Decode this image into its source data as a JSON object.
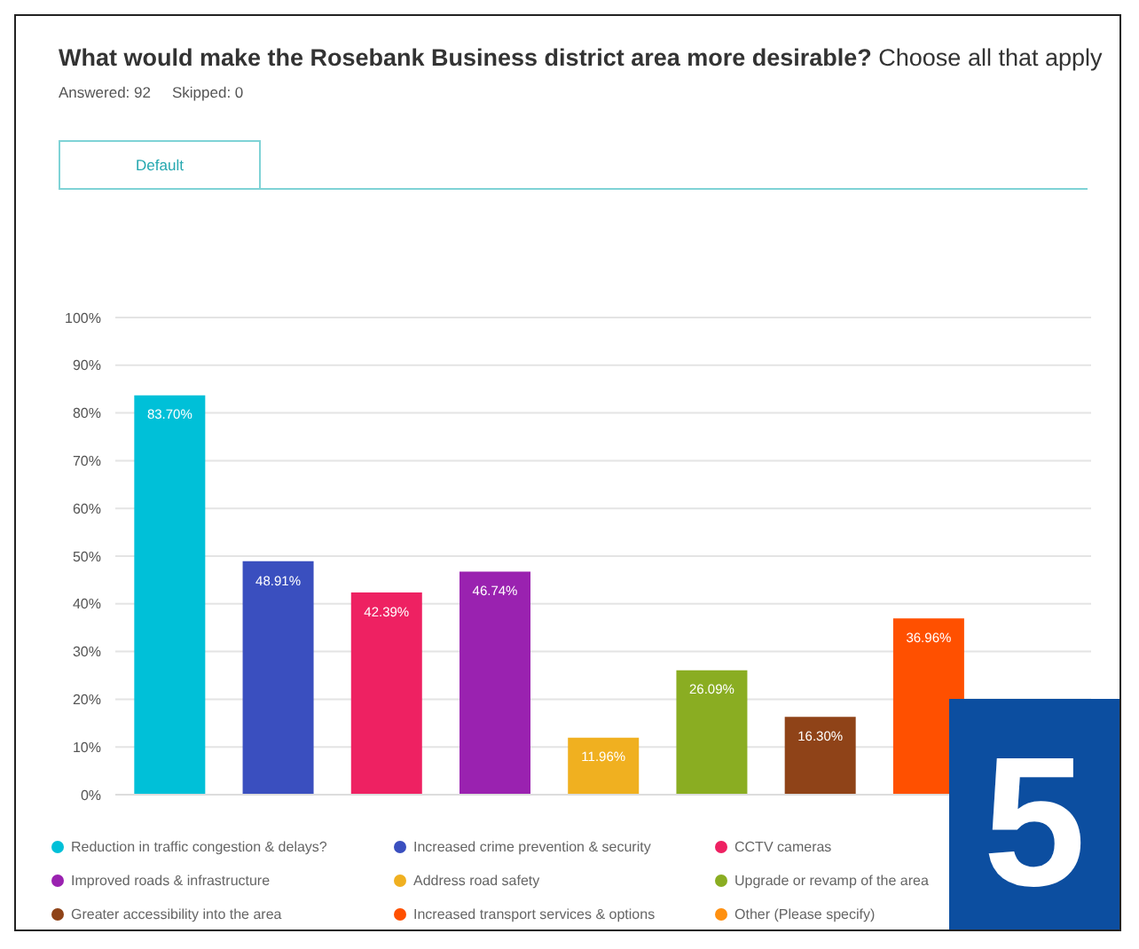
{
  "chart_data": {
    "type": "bar",
    "title": "What would make the Rosebank Business district area more desirable?",
    "subtitle": "Choose all that apply",
    "annotations": [
      "Answered: 92",
      "Skipped: 0",
      "Default",
      "5"
    ],
    "categories": [
      null,
      null,
      null,
      null,
      null,
      null,
      null,
      null,
      null
    ],
    "stacked": true,
    "series": [
      {
        "name": "Reduction in traffic congestion & delays?",
        "color": "#00c0d8",
        "values": [
          83.7,
          null,
          null,
          null,
          null,
          null,
          null,
          null,
          null
        ],
        "value_labels": [
          "83.70%",
          null,
          null,
          null,
          null,
          null,
          null,
          null,
          null
        ]
      },
      {
        "name": "Increased crime prevention & security",
        "color": "#3a4fbf",
        "values": [
          null,
          48.91,
          null,
          null,
          null,
          null,
          null,
          null,
          null
        ],
        "value_labels": [
          null,
          "48.91%",
          null,
          null,
          null,
          null,
          null,
          null,
          null
        ]
      },
      {
        "name": "CCTV cameras",
        "color": "#ee2162",
        "values": [
          null,
          null,
          42.39,
          null,
          null,
          null,
          null,
          null,
          null
        ],
        "value_labels": [
          null,
          null,
          "42.39%",
          null,
          null,
          null,
          null,
          null,
          null
        ]
      },
      {
        "name": "Improved roads & infrastructure",
        "color": "#9a22b0",
        "values": [
          null,
          null,
          null,
          46.74,
          null,
          null,
          null,
          null,
          null
        ],
        "value_labels": [
          null,
          null,
          null,
          "46.74%",
          null,
          null,
          null,
          null,
          null
        ]
      },
      {
        "name": "Address road safety",
        "color": "#f0b020",
        "values": [
          null,
          null,
          null,
          null,
          11.96,
          null,
          null,
          null,
          null
        ],
        "value_labels": [
          null,
          null,
          null,
          null,
          "11.96%",
          null,
          null,
          null,
          null
        ]
      },
      {
        "name": "Upgrade or revamp of the area",
        "color": "#8aad22",
        "values": [
          null,
          null,
          null,
          null,
          null,
          26.09,
          null,
          null,
          null
        ],
        "value_labels": [
          null,
          null,
          null,
          null,
          null,
          "26.09%",
          null,
          null,
          null
        ]
      },
      {
        "name": "Greater accessibility into the area",
        "color": "#8f4318",
        "values": [
          null,
          null,
          null,
          null,
          null,
          null,
          16.3,
          null,
          null
        ],
        "value_labels": [
          null,
          null,
          null,
          null,
          null,
          null,
          "16.30%",
          null,
          null
        ]
      },
      {
        "name": "Increased transport services & options",
        "color": "#ff5000",
        "values": [
          null,
          null,
          null,
          null,
          null,
          null,
          null,
          36.96,
          null
        ],
        "value_labels": [
          null,
          null,
          null,
          null,
          null,
          null,
          null,
          "36.96%",
          null
        ]
      },
      {
        "name": "Other (Please specify)",
        "color": "#ff9010",
        "values": [
          null,
          null,
          null,
          null,
          null,
          null,
          null,
          null,
          null
        ]
      }
    ],
    "ylim": [
      0,
      100
    ],
    "yticks": [
      {
        "value": 0,
        "label": "0%"
      },
      {
        "value": 10,
        "label": "10%"
      },
      {
        "value": 20,
        "label": "20%"
      },
      {
        "value": 30,
        "label": "30%"
      },
      {
        "value": 40,
        "label": "40%"
      },
      {
        "value": 50,
        "label": "50%"
      },
      {
        "value": 60,
        "label": "60%"
      },
      {
        "value": 70,
        "label": "70%"
      },
      {
        "value": 80,
        "label": "80%"
      },
      {
        "value": 90,
        "label": "90%"
      },
      {
        "value": 100,
        "label": "100%"
      }
    ],
    "grid": "y",
    "legend": "bottom",
    "tick_labels": "y"
  }
}
